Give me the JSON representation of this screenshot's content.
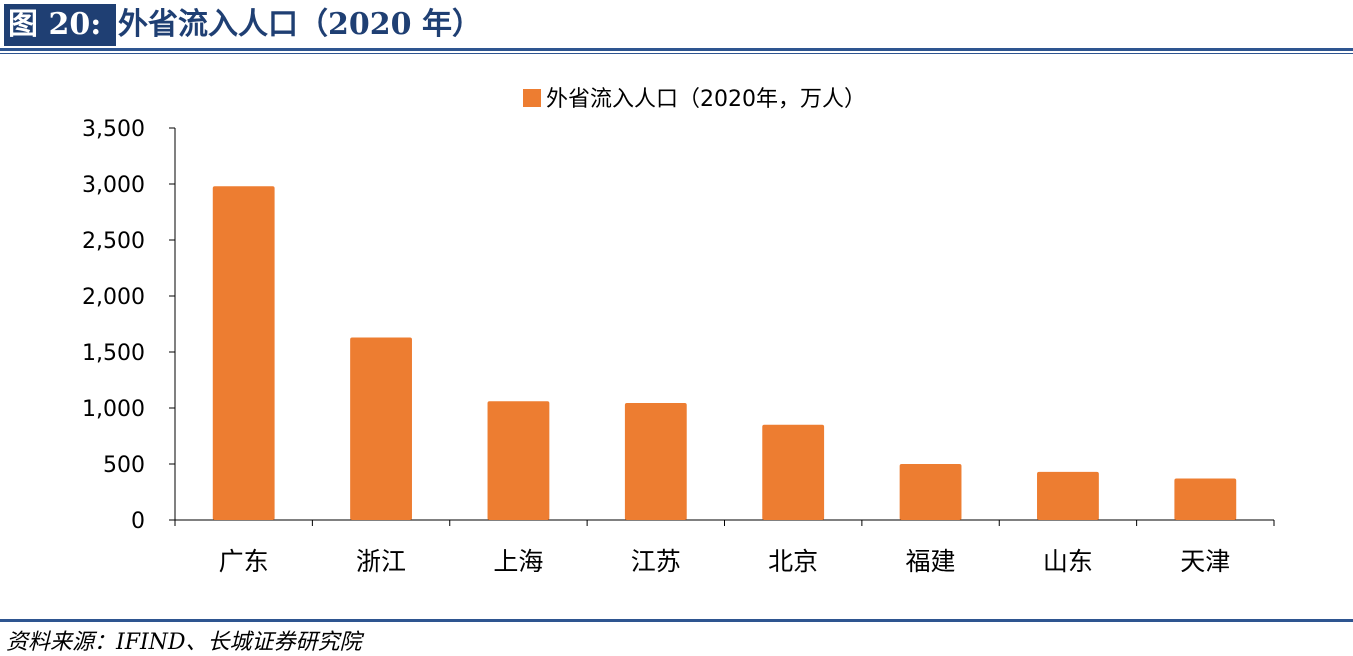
{
  "figure": {
    "label": "图 20:",
    "title": "外省流入人口（2020 年）",
    "source": "资料来源：IFIND、长城证券研究院"
  },
  "colors": {
    "bar": "#ED7D31",
    "header_bg": "#1F3F73",
    "rule": "#2E5590"
  },
  "chart_data": {
    "type": "bar",
    "categories": [
      "广东",
      "浙江",
      "上海",
      "江苏",
      "北京",
      "福建",
      "山东",
      "天津"
    ],
    "series": [
      {
        "name": "外省流入人口（2020年，万人）",
        "values": [
          2980,
          1630,
          1060,
          1045,
          850,
          500,
          430,
          370
        ]
      }
    ],
    "ylim": [
      0,
      3500
    ],
    "yticks": [
      0,
      500,
      1000,
      1500,
      2000,
      2500,
      3000,
      3500
    ],
    "ytick_labels": [
      "0",
      "500",
      "1,000",
      "1,500",
      "2,000",
      "2,500",
      "3,000",
      "3,500"
    ],
    "legend_position": "top-center",
    "grid": false
  }
}
